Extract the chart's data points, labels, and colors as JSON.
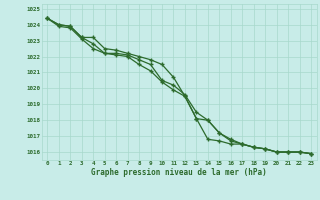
{
  "xlabel": "Graphe pression niveau de la mer (hPa)",
  "xlim": [
    -0.5,
    23.5
  ],
  "ylim": [
    1015.5,
    1025.3
  ],
  "yticks": [
    1016,
    1017,
    1018,
    1019,
    1020,
    1021,
    1022,
    1023,
    1024,
    1025
  ],
  "xticks": [
    0,
    1,
    2,
    3,
    4,
    5,
    6,
    7,
    8,
    9,
    10,
    11,
    12,
    13,
    14,
    15,
    16,
    17,
    18,
    19,
    20,
    21,
    22,
    23
  ],
  "background_color": "#c8ece8",
  "grid_color": "#a8d8cc",
  "line_color": "#2d6b2d",
  "line1": [
    1024.4,
    1023.9,
    1023.8,
    1023.1,
    1022.5,
    1022.2,
    1022.1,
    1022.0,
    1021.5,
    1021.1,
    1020.4,
    1019.9,
    1019.5,
    1018.1,
    1018.0,
    1017.2,
    1016.7,
    1016.5,
    1016.3,
    1016.2,
    1016.0,
    1016.0,
    1016.0,
    1015.9
  ],
  "line2": [
    1024.4,
    1024.0,
    1023.9,
    1023.2,
    1022.8,
    1022.2,
    1022.2,
    1022.1,
    1021.8,
    1021.5,
    1020.5,
    1020.2,
    1019.6,
    1018.5,
    1018.0,
    1017.2,
    1016.8,
    1016.5,
    1016.3,
    1016.2,
    1016.0,
    1016.0,
    1016.0,
    1015.9
  ],
  "line3": [
    1024.4,
    1024.0,
    1023.9,
    1023.2,
    1023.2,
    1022.5,
    1022.4,
    1022.2,
    1022.0,
    1021.8,
    1021.5,
    1020.7,
    1019.5,
    1018.1,
    1016.8,
    1016.7,
    1016.5,
    1016.5,
    1016.3,
    1016.2,
    1016.0,
    1016.0,
    1016.0,
    1015.9
  ]
}
